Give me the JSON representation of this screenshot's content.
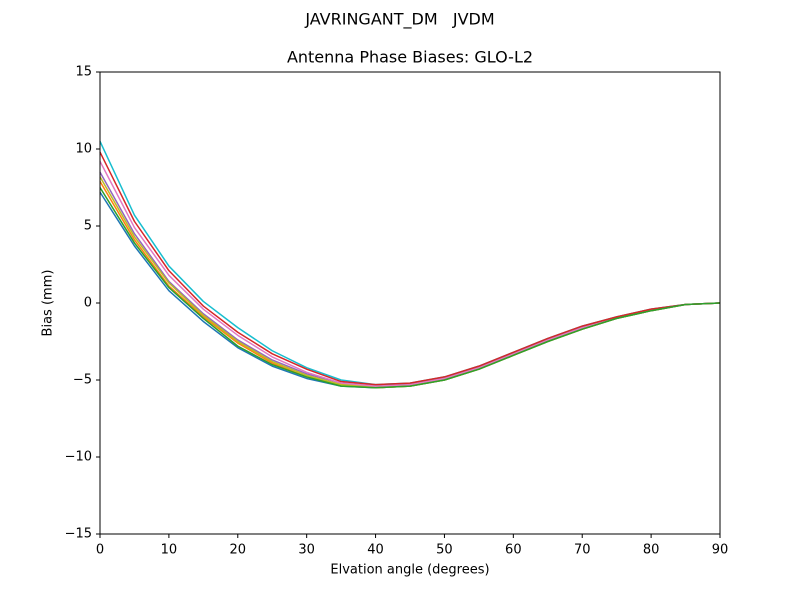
{
  "chart_data": {
    "type": "line",
    "suptitle": "JAVRINGANT_DM   JVDM",
    "title": "Antenna Phase Biases: GLO-L2",
    "xlabel": "Elvation angle (degrees)",
    "ylabel": "Bias (mm)",
    "x": [
      0,
      5,
      10,
      15,
      20,
      25,
      30,
      35,
      40,
      45,
      50,
      55,
      60,
      65,
      70,
      75,
      80,
      85,
      90
    ],
    "series": [
      {
        "color": "#1f77b4",
        "values": [
          7.2,
          3.7,
          0.8,
          -1.2,
          -2.9,
          -4.1,
          -4.9,
          -5.4,
          -5.5,
          -5.4,
          -5.0,
          -4.3,
          -3.4,
          -2.5,
          -1.7,
          -1.0,
          -0.5,
          -0.1,
          0
        ]
      },
      {
        "color": "#ff7f0e",
        "values": [
          7.9,
          4.1,
          1.1,
          -0.9,
          -2.6,
          -3.9,
          -4.8,
          -5.3,
          -5.5,
          -5.4,
          -5.0,
          -4.3,
          -3.4,
          -2.5,
          -1.7,
          -1.0,
          -0.5,
          -0.1,
          0
        ]
      },
      {
        "color": "#9467bd",
        "values": [
          8.5,
          4.5,
          1.4,
          -0.7,
          -2.4,
          -3.7,
          -4.6,
          -5.2,
          -5.4,
          -5.3,
          -4.9,
          -4.2,
          -3.3,
          -2.4,
          -1.6,
          -1.0,
          -0.5,
          -0.1,
          0
        ]
      },
      {
        "color": "#e377c2",
        "values": [
          9.2,
          4.9,
          1.8,
          -0.4,
          -2.1,
          -3.5,
          -4.5,
          -5.2,
          -5.4,
          -5.3,
          -4.9,
          -4.2,
          -3.3,
          -2.4,
          -1.6,
          -0.9,
          -0.4,
          -0.1,
          0
        ]
      },
      {
        "color": "#17becf",
        "values": [
          10.5,
          5.7,
          2.4,
          0.1,
          -1.6,
          -3.1,
          -4.2,
          -5.0,
          -5.3,
          -5.2,
          -4.8,
          -4.1,
          -3.2,
          -2.3,
          -1.5,
          -0.9,
          -0.4,
          -0.1,
          0
        ]
      },
      {
        "color": "#bcbd22",
        "values": [
          8.2,
          4.3,
          1.3,
          -0.8,
          -2.5,
          -3.8,
          -4.7,
          -5.3,
          -5.5,
          -5.4,
          -5.0,
          -4.3,
          -3.4,
          -2.5,
          -1.7,
          -1.0,
          -0.5,
          -0.1,
          0
        ]
      },
      {
        "color": "#d62728",
        "values": [
          9.8,
          5.3,
          2.1,
          -0.2,
          -1.9,
          -3.3,
          -4.3,
          -5.1,
          -5.3,
          -5.2,
          -4.8,
          -4.1,
          -3.2,
          -2.3,
          -1.5,
          -0.9,
          -0.4,
          -0.1,
          0
        ]
      },
      {
        "color": "#2ca02c",
        "values": [
          7.5,
          3.9,
          1.0,
          -1.0,
          -2.8,
          -4.0,
          -4.8,
          -5.4,
          -5.5,
          -5.4,
          -5.0,
          -4.3,
          -3.4,
          -2.5,
          -1.7,
          -1.0,
          -0.5,
          -0.1,
          0
        ]
      }
    ],
    "xlim": [
      0,
      90
    ],
    "ylim": [
      -15,
      15
    ],
    "xticks": [
      0,
      10,
      20,
      30,
      40,
      50,
      60,
      70,
      80,
      90
    ],
    "yticks": [
      {
        "value": -15,
        "label": "−15"
      },
      {
        "value": -10,
        "label": "−10"
      },
      {
        "value": -5,
        "label": "−5"
      },
      0,
      5,
      10,
      15
    ],
    "grid": false
  }
}
